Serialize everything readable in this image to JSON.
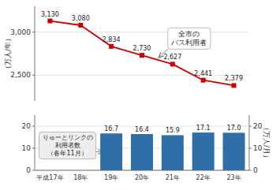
{
  "chart_data": [
    {
      "type": "line",
      "categories": [
        "平成17年",
        "18年",
        "19年",
        "20年",
        "21年",
        "22年",
        "23年"
      ],
      "values": [
        3130,
        3080,
        2834,
        2730,
        2627,
        2441,
        2379
      ],
      "value_labels": [
        "3,130",
        "3,080",
        "2,834",
        "2,730",
        "2,627",
        "2,441",
        "2,379"
      ],
      "color": "#cc0000",
      "marker": "square",
      "y_label": "（万人/年）",
      "ylim": [
        2200,
        3300
      ],
      "yticks": [
        {
          "value": 2500,
          "label": "2,500"
        },
        {
          "value": 3000,
          "label": "3,000"
        }
      ],
      "grid": true,
      "data_labels": true,
      "tick_labels": "y",
      "annotations": [
        "全市の\nバス利用者"
      ]
    },
    {
      "type": "bar",
      "categories": [
        "平成17年",
        "18年",
        "19年",
        "20年",
        "21年",
        "22年",
        "23年"
      ],
      "values": [
        null,
        null,
        16.7,
        16.4,
        15.9,
        17.1,
        17.0
      ],
      "value_labels": [
        null,
        null,
        "16.7",
        "16.4",
        "15.9",
        "17.1",
        "17.0"
      ],
      "color": "#2e6fa8",
      "ylim": [
        0,
        25
      ],
      "yticks": [
        0,
        10,
        20
      ],
      "y2lim": [
        0,
        25
      ],
      "y2ticks": [
        0,
        10,
        20
      ],
      "y2_label": "（万人/月）",
      "grid": true,
      "data_labels": true,
      "annotations": [
        "りゅーとリンクの\n利用者数\n（各年11月）"
      ]
    }
  ]
}
